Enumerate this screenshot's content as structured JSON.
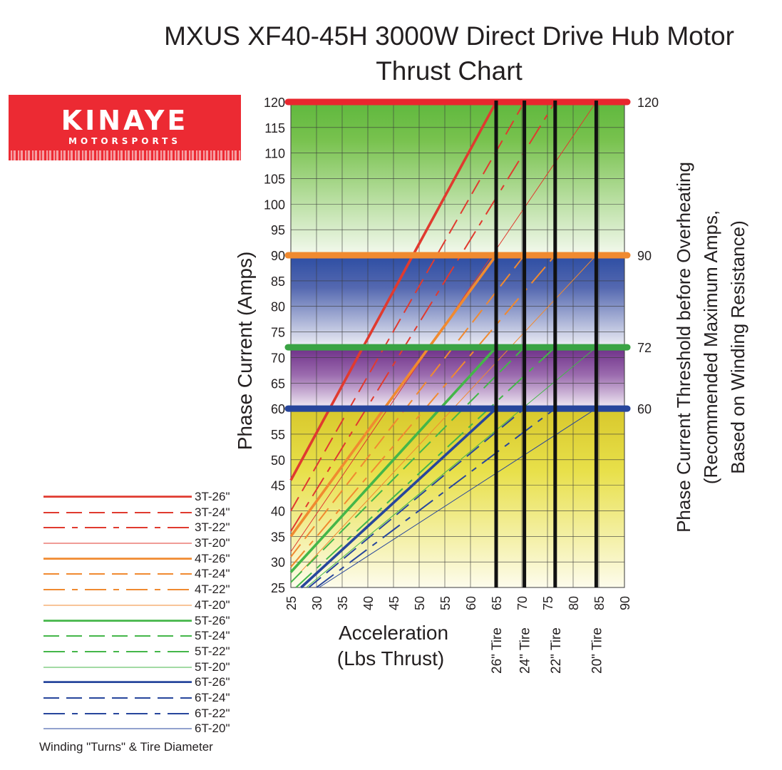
{
  "title_line1": "MXUS XF40-45H 3000W Direct Drive Hub Motor",
  "title_line2": "Thrust Chart",
  "logo": {
    "wordmark": "KINAYE",
    "subtext": "MOTORSPORTS"
  },
  "colors": {
    "3T": "#e03a2f",
    "4T": "#f08a30",
    "5T": "#44b649",
    "6T": "#27469c",
    "threshold_red": "#e8272e",
    "threshold_orange": "#f08a30",
    "threshold_green": "#3aa344",
    "threshold_blue": "#27469c"
  },
  "chart_data": {
    "type": "line",
    "title": "MXUS XF40-45H 3000W Direct Drive Hub Motor Thrust Chart",
    "xlabel_line1": "Acceleration",
    "xlabel_line2": "(Lbs Thrust)",
    "ylabel": "Phase Current (Amps)",
    "y2label_line1": "Phase Current Threshold before Overheating",
    "y2label_line2": "(Recommended Maximum Amps,",
    "y2label_line3": "Based on Winding Resistance)",
    "xlim": [
      25,
      90
    ],
    "ylim": [
      25,
      120
    ],
    "x_ticks": [
      "25",
      "30",
      "35",
      "40",
      "45",
      "50",
      "55",
      "60",
      "65",
      "70",
      "75",
      "80",
      "85",
      "90"
    ],
    "y_ticks": [
      "25",
      "30",
      "35",
      "40",
      "45",
      "50",
      "55",
      "60",
      "65",
      "70",
      "75",
      "80",
      "85",
      "90",
      "95",
      "100",
      "105",
      "110",
      "115",
      "120"
    ],
    "grid": true,
    "legend_position": "bottom-left",
    "legend_caption": "Winding \"Turns\" & Tire Diameter",
    "thresholds": [
      {
        "value": 120,
        "label": "120",
        "color": "#e8272e"
      },
      {
        "value": 90,
        "label": "90",
        "color": "#f08a30"
      },
      {
        "value": 72,
        "label": "72",
        "color": "#3aa344"
      },
      {
        "value": 60,
        "label": "60",
        "color": "#27469c"
      }
    ],
    "tire_markers": [
      {
        "x": 65,
        "label": "26\" Tire"
      },
      {
        "x": 70.5,
        "label": "24\" Tire"
      },
      {
        "x": 76.5,
        "label": "22\" Tire"
      },
      {
        "x": 84.5,
        "label": "20\" Tire"
      }
    ],
    "series": [
      {
        "name": "3T-26\"",
        "winding": "3T",
        "tire": "26",
        "points": [
          [
            25,
            46
          ],
          [
            65,
            120
          ]
        ]
      },
      {
        "name": "3T-24\"",
        "winding": "3T",
        "tire": "24",
        "points": [
          [
            25,
            40
          ],
          [
            70.5,
            120
          ]
        ]
      },
      {
        "name": "3T-22\"",
        "winding": "3T",
        "tire": "22",
        "points": [
          [
            25,
            36
          ],
          [
            76.5,
            120
          ]
        ]
      },
      {
        "name": "3T-20\"",
        "winding": "3T",
        "tire": "20",
        "points": [
          [
            25,
            32
          ],
          [
            84.5,
            120
          ]
        ]
      },
      {
        "name": "4T-26\"",
        "winding": "4T",
        "tire": "26",
        "points": [
          [
            25,
            35
          ],
          [
            65,
            90
          ]
        ]
      },
      {
        "name": "4T-24\"",
        "winding": "4T",
        "tire": "24",
        "points": [
          [
            25,
            31
          ],
          [
            70.5,
            90
          ]
        ]
      },
      {
        "name": "4T-22\"",
        "winding": "4T",
        "tire": "22",
        "points": [
          [
            25,
            29
          ],
          [
            76.5,
            90
          ]
        ]
      },
      {
        "name": "4T-20\"",
        "winding": "4T",
        "tire": "20",
        "points": [
          [
            25,
            26
          ],
          [
            84.5,
            90
          ]
        ]
      },
      {
        "name": "5T-26\"",
        "winding": "5T",
        "tire": "26",
        "points": [
          [
            25,
            28
          ],
          [
            65,
            72
          ]
        ]
      },
      {
        "name": "5T-24\"",
        "winding": "5T",
        "tire": "24",
        "points": [
          [
            25,
            26
          ],
          [
            70.5,
            72
          ]
        ]
      },
      {
        "name": "5T-22\"",
        "winding": "5T",
        "tire": "22",
        "points": [
          [
            26,
            25
          ],
          [
            76.5,
            72
          ]
        ]
      },
      {
        "name": "5T-20\"",
        "winding": "5T",
        "tire": "20",
        "points": [
          [
            28,
            25
          ],
          [
            84.5,
            72
          ]
        ]
      },
      {
        "name": "6T-26\"",
        "winding": "6T",
        "tire": "26",
        "points": [
          [
            27,
            25
          ],
          [
            65,
            60
          ]
        ]
      },
      {
        "name": "6T-24\"",
        "winding": "6T",
        "tire": "24",
        "points": [
          [
            28.5,
            25
          ],
          [
            70.5,
            60
          ]
        ]
      },
      {
        "name": "6T-22\"",
        "winding": "6T",
        "tire": "22",
        "points": [
          [
            30,
            25
          ],
          [
            76.5,
            60
          ]
        ]
      },
      {
        "name": "6T-20\"",
        "winding": "6T",
        "tire": "20",
        "points": [
          [
            30.5,
            25
          ],
          [
            84.5,
            60
          ]
        ]
      }
    ]
  }
}
